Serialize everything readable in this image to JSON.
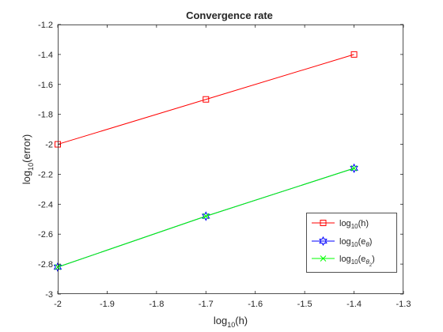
{
  "chart_data": {
    "type": "line",
    "title": "Convergence rate",
    "xlabel": {
      "base": "log",
      "sub": "10",
      "rest": "(h)"
    },
    "ylabel": {
      "base": "log",
      "sub": "10",
      "rest": "(error)"
    },
    "xlim": [
      -2,
      -1.3
    ],
    "ylim": [
      -3,
      -1.2
    ],
    "xticks": [
      -2,
      -1.9,
      -1.8,
      -1.7,
      -1.6,
      -1.5,
      -1.4,
      -1.3
    ],
    "xtick_labels": [
      "-2",
      "-1.9",
      "-1.8",
      "-1.7",
      "-1.6",
      "-1.5",
      "-1.4",
      "-1.3"
    ],
    "yticks": [
      -3,
      -2.8,
      -2.6,
      -2.4,
      -2.2,
      -2,
      -1.8,
      -1.6,
      -1.4,
      -1.2
    ],
    "ytick_labels": [
      "-3",
      "-2.8",
      "-2.6",
      "-2.4",
      "-2.2",
      "-2",
      "-1.8",
      "-1.6",
      "-1.4",
      "-1.2"
    ],
    "grid": false,
    "legend_position": "bottom-right",
    "series": [
      {
        "label": {
          "base": "log",
          "sub": "10",
          "inner": "h",
          "inner_sub": ""
        },
        "x": [
          -2,
          -1.7,
          -1.4
        ],
        "y": [
          -2,
          -1.7,
          -1.4
        ],
        "color": "#ff0000",
        "marker": "square"
      },
      {
        "label": {
          "base": "log",
          "sub": "10",
          "inner": "e",
          "inner_sub": "θ"
        },
        "x": [
          -2,
          -1.7,
          -1.4
        ],
        "y": [
          -2.82,
          -2.48,
          -2.16
        ],
        "color": "#0000ff",
        "marker": "hexagram"
      },
      {
        "label": {
          "base": "log",
          "sub": "10",
          "inner": "e",
          "inner_sub": "θ",
          "inner_sub_sub": "2"
        },
        "x": [
          -2,
          -1.7,
          -1.4
        ],
        "y": [
          -2.82,
          -2.48,
          -2.16
        ],
        "color": "#00ff00",
        "marker": "x"
      }
    ]
  }
}
